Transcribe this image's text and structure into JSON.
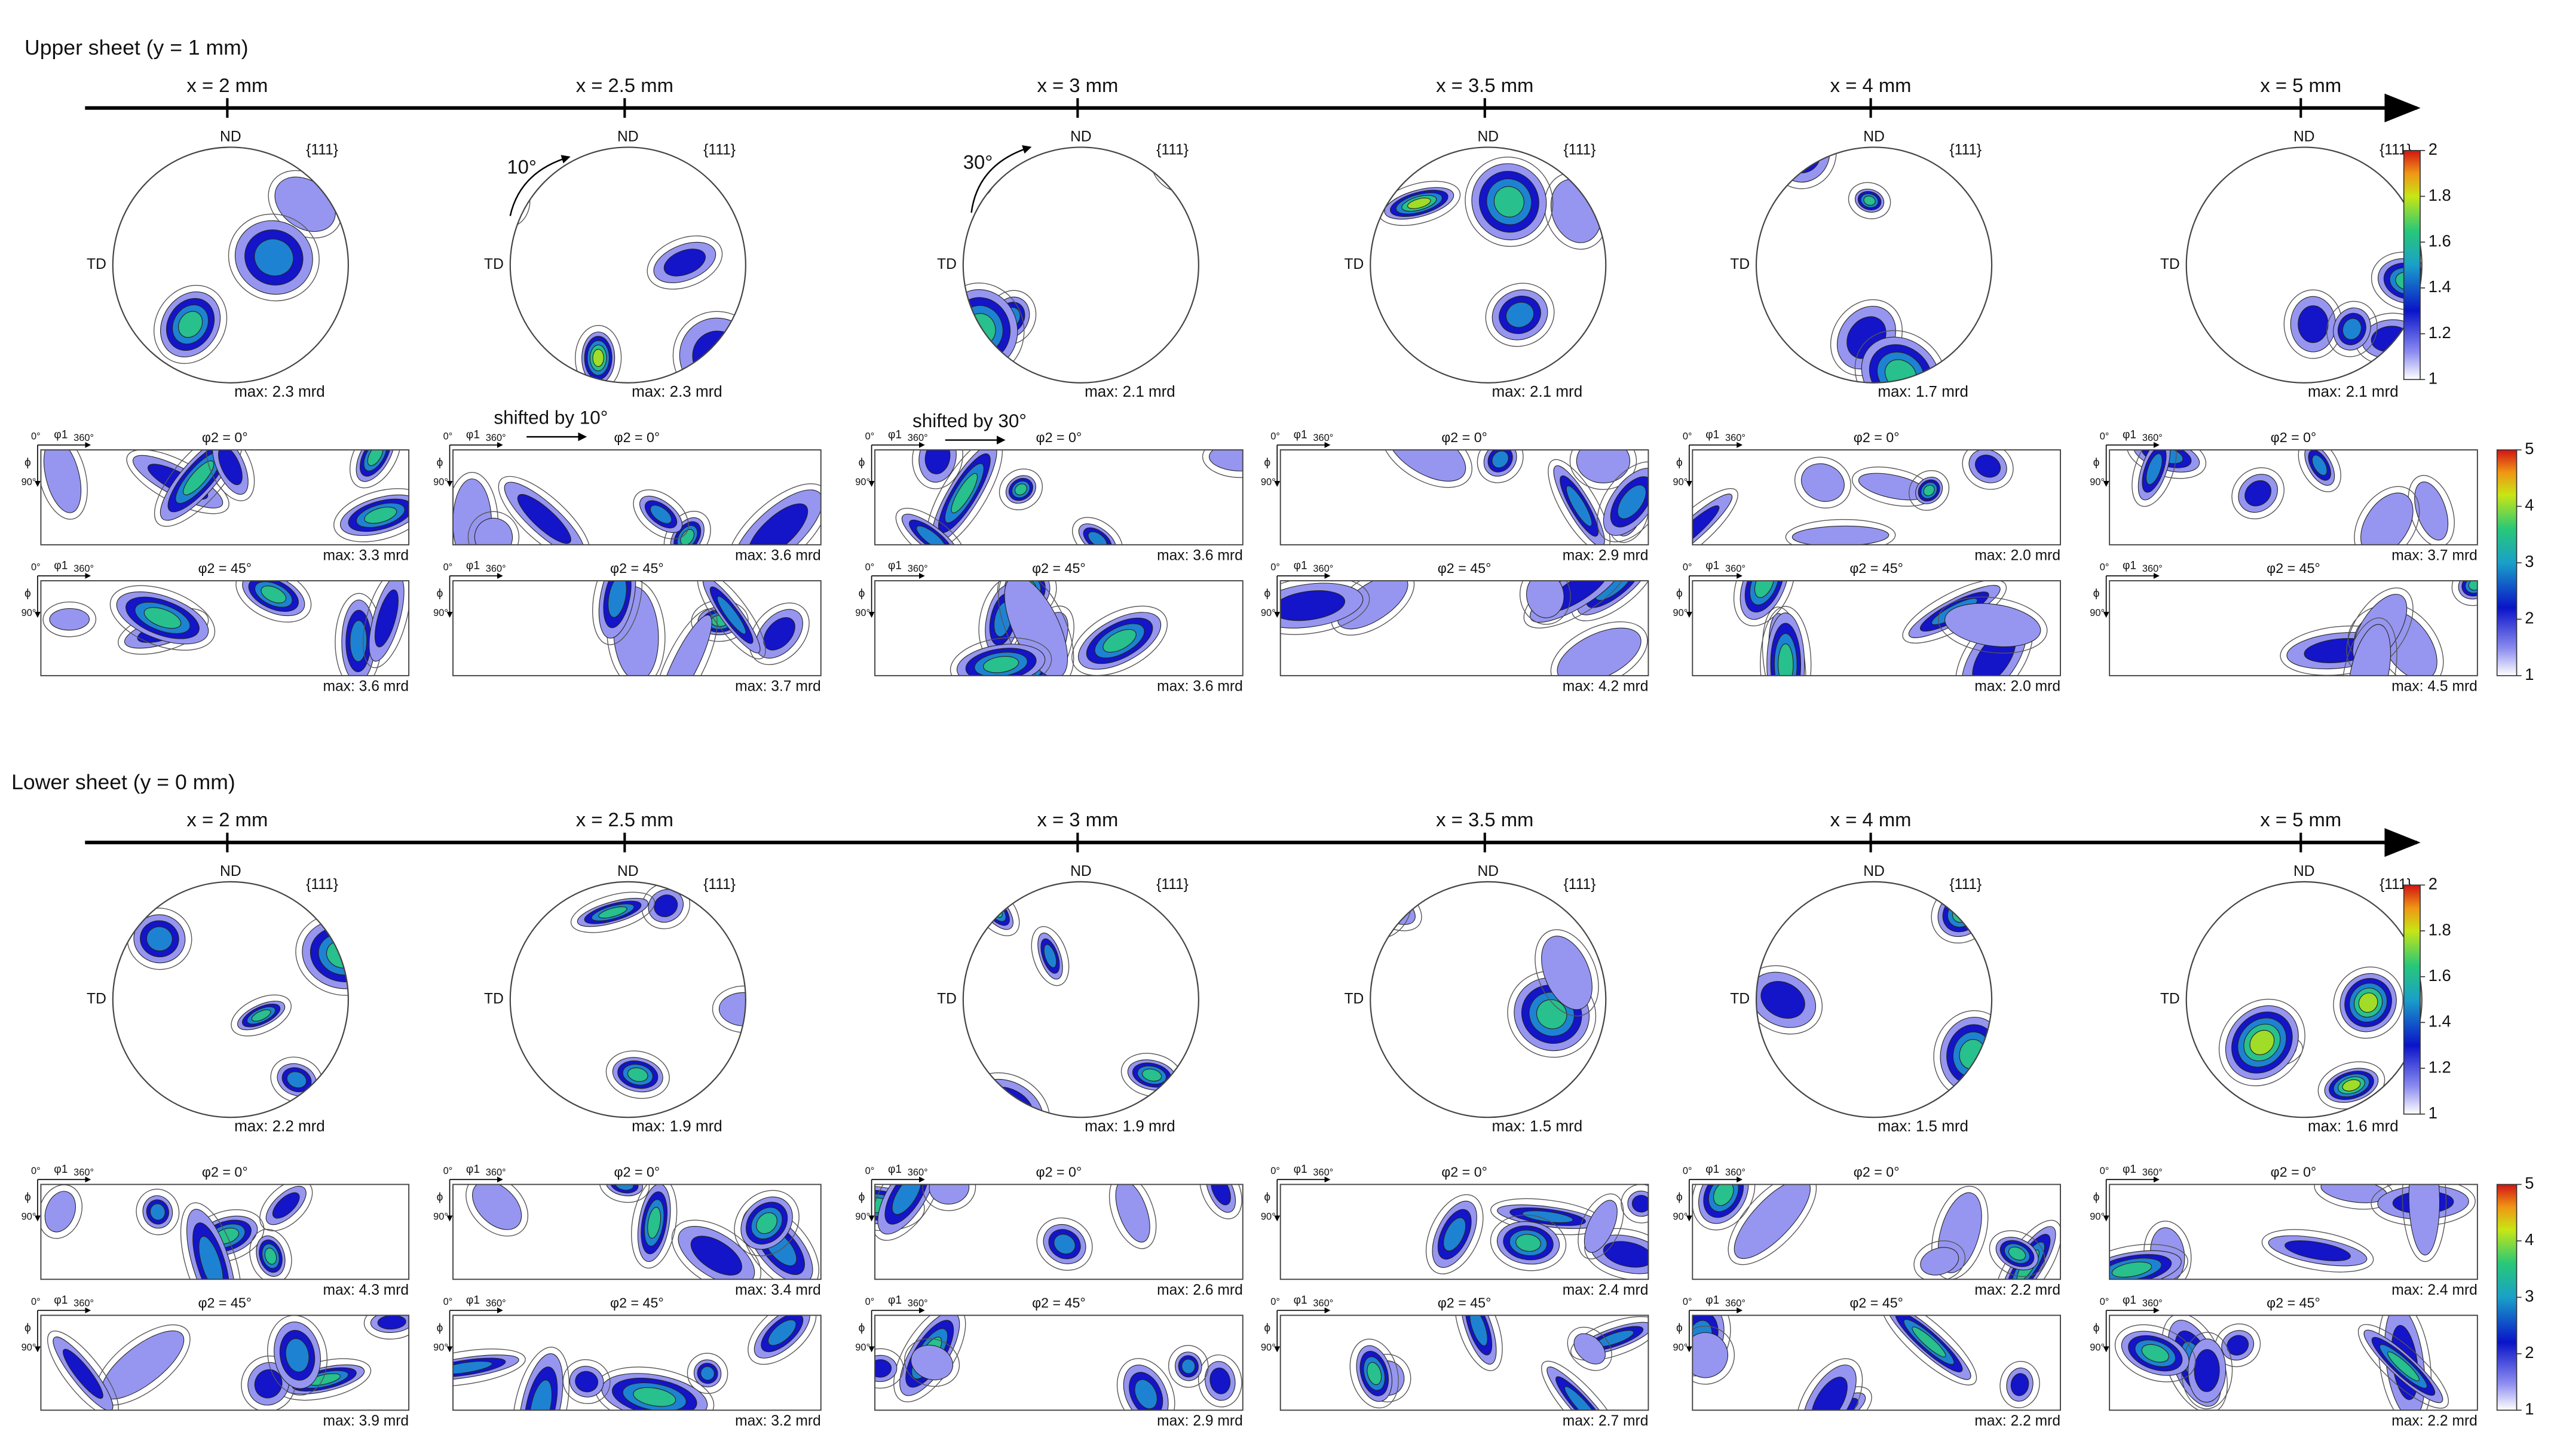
{
  "odf_axes": {
    "origin": "0°",
    "phi1": "φ1",
    "end": "360°",
    "phi": "ϕ",
    "phi_end": "90°"
  },
  "annotations": [
    {
      "text": "10°"
    },
    {
      "text": "30°"
    },
    {
      "text": "shifted by 10°"
    },
    {
      "text": "shifted by 30°"
    }
  ],
  "sections": [
    {
      "title": "Upper sheet (y = 1 mm)",
      "pole_colorbar": {
        "ticks": [
          1,
          1.2,
          1.4,
          1.6,
          1.8,
          2
        ]
      },
      "odf_colorbar": {
        "ticks": [
          1,
          2,
          3,
          4,
          5
        ]
      },
      "columns": [
        {
          "x_label": "x = 2 mm",
          "pole_figure": {
            "nd": "ND",
            "plane": "{111}",
            "td": "TD",
            "max": "max: 2.3 mrd"
          },
          "odf": [
            {
              "phi2": "φ2 = 0°",
              "max": "max: 3.3 mrd"
            },
            {
              "phi2": "φ2 = 45°",
              "max": "max: 3.6 mrd"
            }
          ]
        },
        {
          "x_label": "x = 2.5 mm",
          "pole_figure": {
            "nd": "ND",
            "plane": "{111}",
            "td": "TD",
            "max": "max: 2.3 mrd"
          },
          "odf": [
            {
              "phi2": "φ2 = 0°",
              "max": "max: 3.6 mrd"
            },
            {
              "phi2": "φ2 = 45°",
              "max": "max: 3.7 mrd"
            }
          ]
        },
        {
          "x_label": "x = 3 mm",
          "pole_figure": {
            "nd": "ND",
            "plane": "{111}",
            "td": "TD",
            "max": "max: 2.1 mrd"
          },
          "odf": [
            {
              "phi2": "φ2 = 0°",
              "max": "max: 3.6 mrd"
            },
            {
              "phi2": "φ2 = 45°",
              "max": "max: 3.6 mrd"
            }
          ]
        },
        {
          "x_label": "x = 3.5 mm",
          "pole_figure": {
            "nd": "ND",
            "plane": "{111}",
            "td": "TD",
            "max": "max: 2.1 mrd"
          },
          "odf": [
            {
              "phi2": "φ2 = 0°",
              "max": "max: 2.9 mrd"
            },
            {
              "phi2": "φ2 = 45°",
              "max": "max: 4.2 mrd"
            }
          ]
        },
        {
          "x_label": "x = 4 mm",
          "pole_figure": {
            "nd": "ND",
            "plane": "{111}",
            "td": "TD",
            "max": "max: 1.7 mrd"
          },
          "odf": [
            {
              "phi2": "φ2 = 0°",
              "max": "max: 2.0 mrd"
            },
            {
              "phi2": "φ2 = 45°",
              "max": "max: 2.0 mrd"
            }
          ]
        },
        {
          "x_label": "x = 5 mm",
          "pole_figure": {
            "nd": "ND",
            "plane": "{111}",
            "td": "TD",
            "max": "max: 2.1 mrd"
          },
          "odf": [
            {
              "phi2": "φ2 = 0°",
              "max": "max: 3.7 mrd"
            },
            {
              "phi2": "φ2 = 45°",
              "max": "max: 4.5 mrd"
            }
          ]
        }
      ]
    },
    {
      "title": "Lower sheet (y = 0 mm)",
      "pole_colorbar": {
        "ticks": [
          1,
          1.2,
          1.4,
          1.6,
          1.8,
          2
        ]
      },
      "odf_colorbar": {
        "ticks": [
          1,
          2,
          3,
          4,
          5
        ]
      },
      "columns": [
        {
          "x_label": "x = 2 mm",
          "pole_figure": {
            "nd": "ND",
            "plane": "{111}",
            "td": "TD",
            "max": "max: 2.2 mrd"
          },
          "odf": [
            {
              "phi2": "φ2 = 0°",
              "max": "max: 4.3 mrd"
            },
            {
              "phi2": "φ2 = 45°",
              "max": "max: 3.9 mrd"
            }
          ]
        },
        {
          "x_label": "x = 2.5 mm",
          "pole_figure": {
            "nd": "ND",
            "plane": "{111}",
            "td": "TD",
            "max": "max: 1.9 mrd"
          },
          "odf": [
            {
              "phi2": "φ2 = 0°",
              "max": "max: 3.4 mrd"
            },
            {
              "phi2": "φ2 = 45°",
              "max": "max: 3.2 mrd"
            }
          ]
        },
        {
          "x_label": "x = 3 mm",
          "pole_figure": {
            "nd": "ND",
            "plane": "{111}",
            "td": "TD",
            "max": "max: 1.9 mrd"
          },
          "odf": [
            {
              "phi2": "φ2 = 0°",
              "max": "max: 2.6 mrd"
            },
            {
              "phi2": "φ2 = 45°",
              "max": "max: 2.9 mrd"
            }
          ]
        },
        {
          "x_label": "x = 3.5 mm",
          "pole_figure": {
            "nd": "ND",
            "plane": "{111}",
            "td": "TD",
            "max": "max: 1.5 mrd"
          },
          "odf": [
            {
              "phi2": "φ2 = 0°",
              "max": "max: 2.4 mrd"
            },
            {
              "phi2": "φ2 = 45°",
              "max": "max: 2.7 mrd"
            }
          ]
        },
        {
          "x_label": "x = 4 mm",
          "pole_figure": {
            "nd": "ND",
            "plane": "{111}",
            "td": "TD",
            "max": "max: 1.5 mrd"
          },
          "odf": [
            {
              "phi2": "φ2 = 0°",
              "max": "max: 2.2 mrd"
            },
            {
              "phi2": "φ2 = 45°",
              "max": "max: 2.2 mrd"
            }
          ]
        },
        {
          "x_label": "x = 5 mm",
          "pole_figure": {
            "nd": "ND",
            "plane": "{111}",
            "td": "TD",
            "max": "max: 1.6 mrd"
          },
          "odf": [
            {
              "phi2": "φ2 = 0°",
              "max": "max: 2.4 mrd"
            },
            {
              "phi2": "φ2 = 45°",
              "max": "max: 2.2 mrd"
            }
          ]
        }
      ]
    }
  ]
}
